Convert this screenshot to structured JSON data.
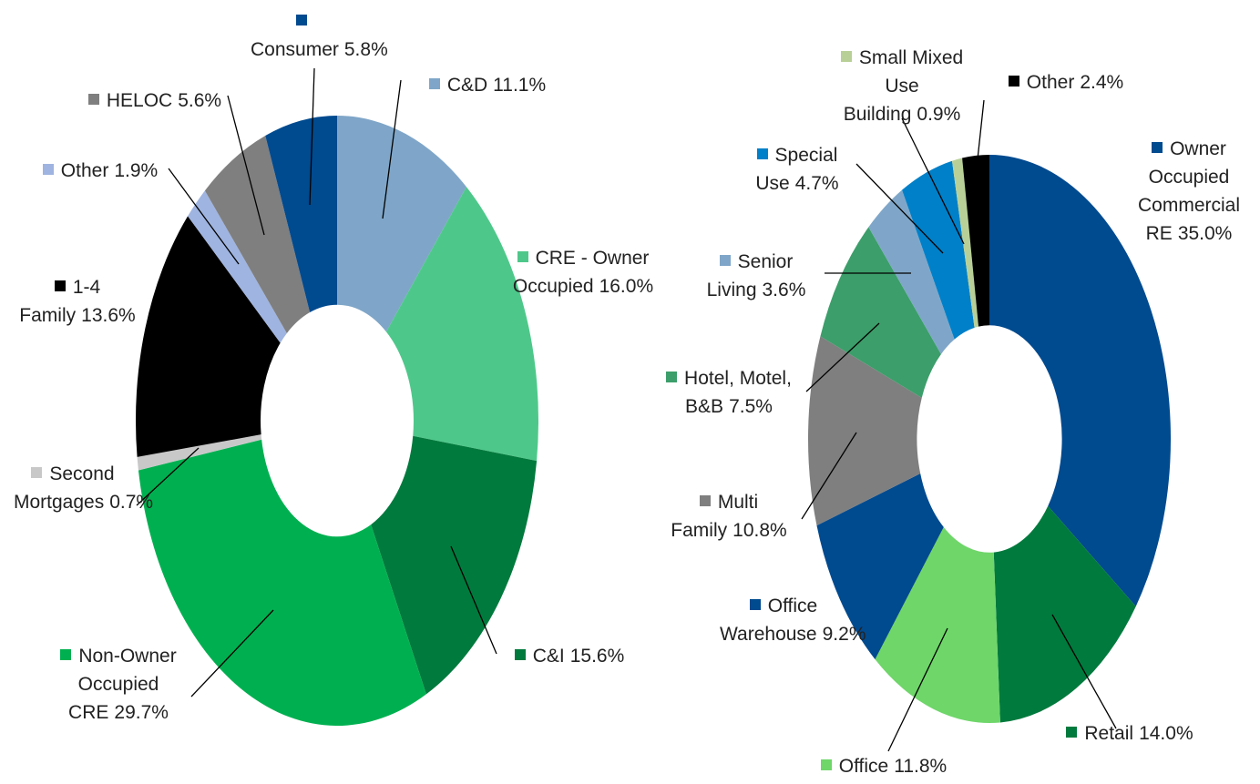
{
  "chart_data": [
    {
      "type": "donut",
      "categories": [
        "C&D",
        "CRE - Owner Occupied",
        "C&I",
        "Non-Owner Occupied CRE",
        "Second Mortgages",
        "1-4 Family",
        "Other",
        "HELOC",
        "Consumer"
      ],
      "values": [
        11.1,
        16.0,
        15.6,
        29.7,
        0.7,
        13.6,
        1.9,
        5.6,
        5.8
      ],
      "value_labels": [
        "11.1%",
        "16.0%",
        "15.6%",
        "29.7%",
        "0.7%",
        "13.6%",
        "1.9%",
        "5.6%",
        "5.8%"
      ],
      "colors": [
        "#7fa6c8",
        "#4ec88a",
        "#007a3d",
        "#00b050",
        "#c8c8c8",
        "#000000",
        "#9fb4e0",
        "#7f7f7f",
        "#004a8f"
      ]
    },
    {
      "type": "donut",
      "categories": [
        "Owner Occupied Commercial RE",
        "Retail",
        "Office",
        "Office Warehouse",
        "Multi Family",
        "Hotel, Motel, B&B",
        "Senior Living",
        "Special Use",
        "Small Mixed Use Building",
        "Other"
      ],
      "values": [
        35.0,
        14.0,
        11.8,
        9.2,
        10.8,
        7.5,
        3.6,
        4.7,
        0.9,
        2.4
      ],
      "value_labels": [
        "35.0%",
        "14.0%",
        "11.8%",
        "9.2%",
        "10.8%",
        "7.5%",
        "3.6%",
        "4.7%",
        "0.9%",
        "2.4%"
      ],
      "colors": [
        "#004a8f",
        "#007a3d",
        "#6fd66a",
        "#004a8f",
        "#7f7f7f",
        "#3c9e6a",
        "#7fa6c8",
        "#0080c8",
        "#b8d098",
        "#000000"
      ]
    }
  ]
}
